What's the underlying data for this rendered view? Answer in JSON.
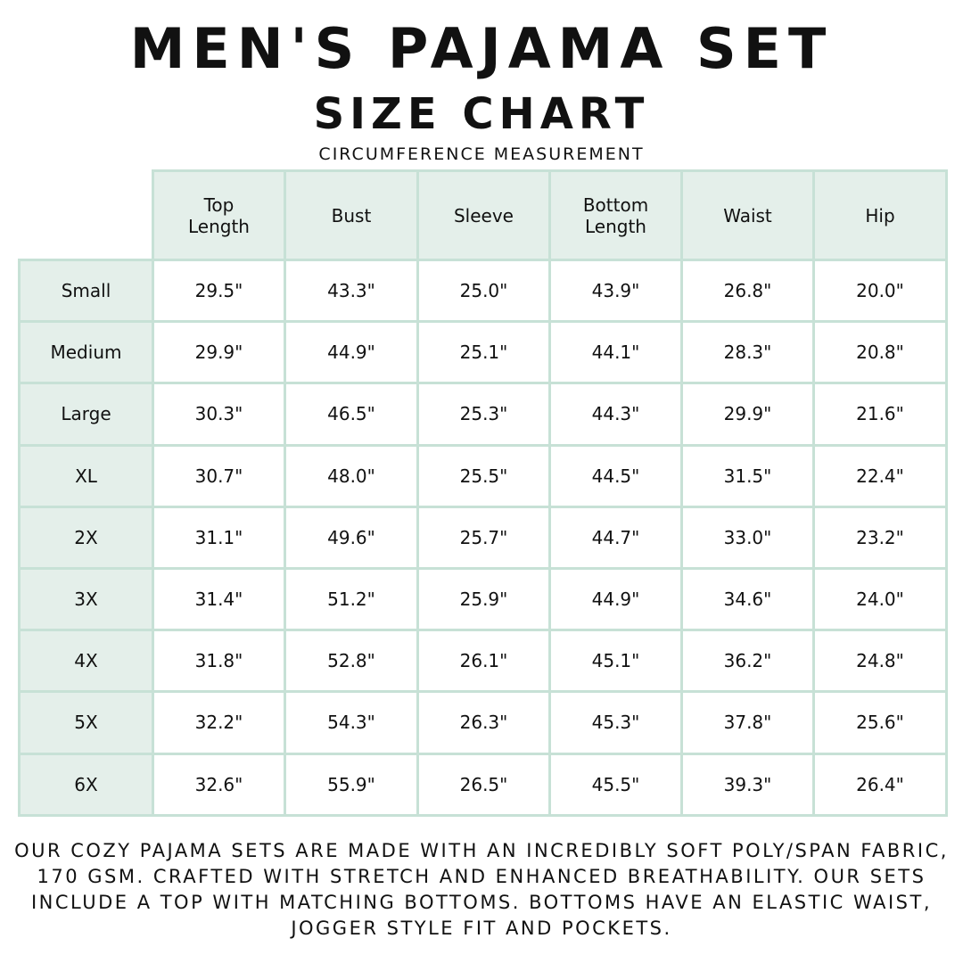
{
  "title": "MEN'S PAJAMA SET",
  "subtitle": "SIZE CHART",
  "caption": "CIRCUMFERENCE MEASUREMENT",
  "table": {
    "headers": [
      "Top\nLength",
      "Bust",
      "Sleeve",
      "Bottom\nLength",
      "Waist",
      "Hip"
    ],
    "rows": [
      {
        "size": "Small",
        "values": [
          "29.5\"",
          "43.3\"",
          "25.0\"",
          "43.9\"",
          "26.8\"",
          "20.0\""
        ]
      },
      {
        "size": "Medium",
        "values": [
          "29.9\"",
          "44.9\"",
          "25.1\"",
          "44.1\"",
          "28.3\"",
          "20.8\""
        ]
      },
      {
        "size": "Large",
        "values": [
          "30.3\"",
          "46.5\"",
          "25.3\"",
          "44.3\"",
          "29.9\"",
          "21.6\""
        ]
      },
      {
        "size": "XL",
        "values": [
          "30.7\"",
          "48.0\"",
          "25.5\"",
          "44.5\"",
          "31.5\"",
          "22.4\""
        ]
      },
      {
        "size": "2X",
        "values": [
          "31.1\"",
          "49.6\"",
          "25.7\"",
          "44.7\"",
          "33.0\"",
          "23.2\""
        ]
      },
      {
        "size": "3X",
        "values": [
          "31.4\"",
          "51.2\"",
          "25.9\"",
          "44.9\"",
          "34.6\"",
          "24.0\""
        ]
      },
      {
        "size": "4X",
        "values": [
          "31.8\"",
          "52.8\"",
          "26.1\"",
          "45.1\"",
          "36.2\"",
          "24.8\""
        ]
      },
      {
        "size": "5X",
        "values": [
          "32.2\"",
          "54.3\"",
          "26.3\"",
          "45.3\"",
          "37.8\"",
          "25.6\""
        ]
      },
      {
        "size": "6X",
        "values": [
          "32.6\"",
          "55.9\"",
          "26.5\"",
          "45.5\"",
          "39.3\"",
          "26.4\""
        ]
      }
    ]
  },
  "footer": "Our cozy pajama sets are made with an incredibly soft poly/span fabric, 170 GSM. Crafted with stretch and enhanced breathability. Our sets include a top with matching bottoms. Bottoms have an elastic waist, jogger style fit and pockets.",
  "colors": {
    "header_bg": "#e4efea",
    "border": "#c7e1d6"
  }
}
